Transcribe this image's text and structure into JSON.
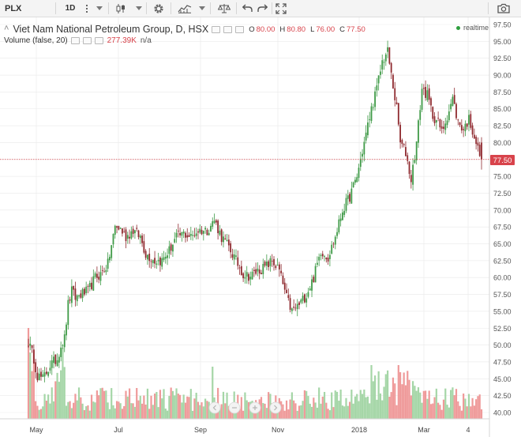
{
  "toolbar": {
    "symbol": "PLX",
    "interval": "1D",
    "icons": [
      "more-vertical-icon",
      "dropdown-caret-icon",
      "candles-icon",
      "gear-icon",
      "indicators-icon",
      "compare-scale-icon",
      "undo-icon",
      "redo-icon",
      "fullscreen-icon",
      "camera-icon"
    ]
  },
  "legend": {
    "title": "Viet Nam National Petroleum Group, D, HSX",
    "open_key": "O",
    "open": "80.00",
    "high_key": "H",
    "high": "80.80",
    "low_key": "L",
    "low": "76.00",
    "close_key": "C",
    "close": "77.50",
    "volume_label": "Volume (false, 20)",
    "volume_value": "277.39K",
    "volume_ma": "n/a",
    "realtime": "realtime"
  },
  "colors": {
    "up": "#3f9a47",
    "down": "#8f2a2f",
    "down_bright": "#d8434b",
    "vol_up": "#a5d6a7",
    "vol_down": "#ef9a9a",
    "price_line": "#d8434b",
    "grid": "#e9e9e9"
  },
  "chart_data": {
    "type": "candlestick",
    "y_ticks": [
      "97.50",
      "95.00",
      "92.50",
      "90.00",
      "87.50",
      "85.00",
      "82.50",
      "80.00",
      "77.50",
      "75.00",
      "72.50",
      "70.00",
      "67.50",
      "65.00",
      "62.50",
      "60.00",
      "57.50",
      "55.00",
      "52.50",
      "50.00",
      "47.50",
      "45.00",
      "42.50",
      "40.00"
    ],
    "ylim": [
      38.5,
      98.5
    ],
    "x_ticks": [
      "May",
      "Jul",
      "Sep",
      "Nov",
      "2018",
      "Mar",
      "4"
    ],
    "last_price": "77.50",
    "price_anchors": [
      [
        0,
        50.5
      ],
      [
        3,
        48
      ],
      [
        5,
        45.5
      ],
      [
        8,
        45
      ],
      [
        12,
        47
      ],
      [
        16,
        48
      ],
      [
        18,
        50
      ],
      [
        20,
        51
      ],
      [
        22,
        56
      ],
      [
        24,
        58
      ],
      [
        26,
        57
      ],
      [
        29,
        57.5
      ],
      [
        33,
        58
      ],
      [
        37,
        60
      ],
      [
        40,
        60.5
      ],
      [
        44,
        62
      ],
      [
        48,
        67.5
      ],
      [
        51,
        67.2
      ],
      [
        54,
        66
      ],
      [
        58,
        67
      ],
      [
        62,
        66
      ],
      [
        65,
        63.5
      ],
      [
        70,
        62.5
      ],
      [
        74,
        62.5
      ],
      [
        78,
        64
      ],
      [
        82,
        66
      ],
      [
        86,
        66.5
      ],
      [
        90,
        66
      ],
      [
        94,
        67
      ],
      [
        99,
        67
      ],
      [
        103,
        68.5
      ],
      [
        107,
        66
      ],
      [
        111,
        64.5
      ],
      [
        115,
        62.5
      ],
      [
        119,
        60.5
      ],
      [
        123,
        60.2
      ],
      [
        127,
        61
      ],
      [
        131,
        61.5
      ],
      [
        135,
        62.5
      ],
      [
        139,
        61
      ],
      [
        143,
        57
      ],
      [
        146,
        55
      ],
      [
        150,
        56
      ],
      [
        154,
        57.5
      ],
      [
        158,
        60
      ],
      [
        162,
        64
      ],
      [
        166,
        63
      ],
      [
        170,
        66
      ],
      [
        174,
        70
      ],
      [
        178,
        72
      ],
      [
        182,
        75
      ],
      [
        186,
        80
      ],
      [
        190,
        85
      ],
      [
        193,
        88
      ],
      [
        196,
        92
      ],
      [
        199,
        93.5
      ],
      [
        201,
        90
      ],
      [
        204,
        85
      ],
      [
        206,
        80
      ],
      [
        209,
        78.5
      ],
      [
        212,
        74.5
      ],
      [
        215,
        80
      ],
      [
        218,
        88
      ],
      [
        221,
        87
      ],
      [
        224,
        84
      ],
      [
        227,
        83
      ],
      [
        229,
        81.5
      ],
      [
        232,
        84
      ],
      [
        235,
        86.5
      ],
      [
        238,
        83
      ],
      [
        241,
        82
      ],
      [
        244,
        83.5
      ],
      [
        247,
        81
      ],
      [
        249,
        79
      ],
      [
        251,
        77.5
      ]
    ],
    "volume_up_count": 146,
    "volume_down_count": 106
  }
}
